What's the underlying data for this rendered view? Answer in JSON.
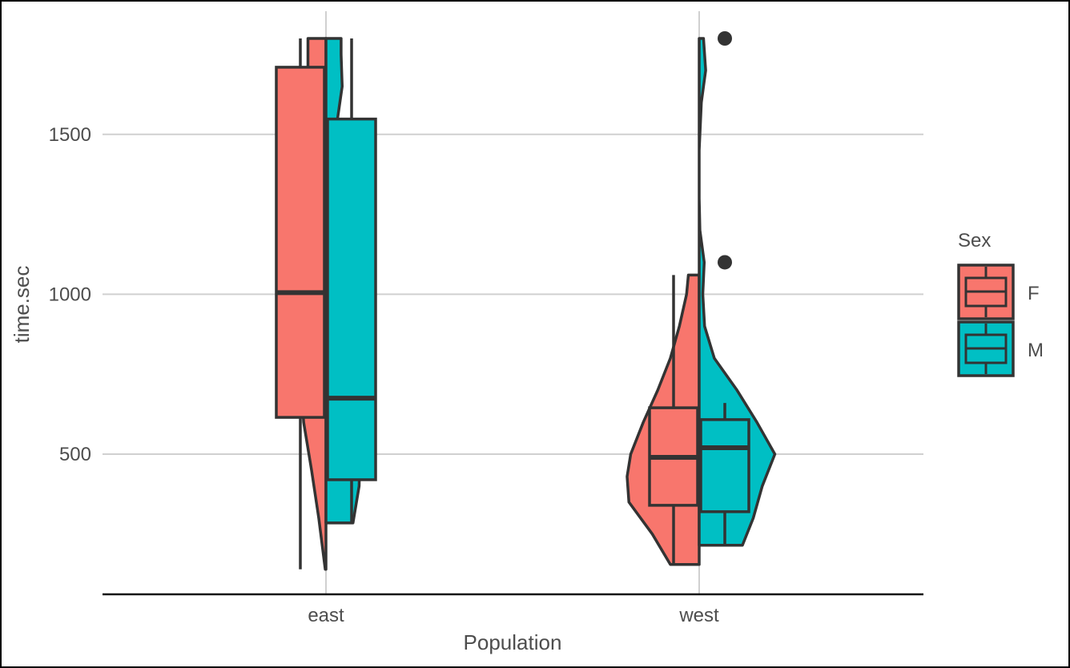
{
  "chart_data": {
    "type": "violin",
    "title": "",
    "xlabel": "Population",
    "ylabel": "time.sec",
    "ylim": [
      80,
      1840
    ],
    "yticks": [
      500,
      1000,
      1500
    ],
    "categories": [
      "east",
      "west"
    ],
    "grid": true,
    "legend": {
      "title": "Sex",
      "position": "right",
      "entries": [
        {
          "label": "F",
          "color": "#F8766D"
        },
        {
          "label": "M",
          "color": "#00BFC4"
        }
      ]
    },
    "series": [
      {
        "name": "F",
        "color": "#F8766D",
        "groups": [
          {
            "category": "east",
            "min": 140,
            "q1": 615,
            "median": 1005,
            "q3": 1710,
            "max": 1800,
            "outliers": [],
            "density": [
              [
                140,
                0.02
              ],
              [
                300,
                0.2
              ],
              [
                450,
                0.4
              ],
              [
                600,
                0.62
              ],
              [
                800,
                0.72
              ],
              [
                1000,
                0.6
              ],
              [
                1200,
                0.5
              ],
              [
                1500,
                0.45
              ],
              [
                1700,
                0.5
              ],
              [
                1800,
                0.5
              ]
            ]
          },
          {
            "category": "west",
            "min": 155,
            "q1": 340,
            "median": 490,
            "q3": 645,
            "max": 1060,
            "outliers": [],
            "density": [
              [
                155,
                0.8
              ],
              [
                250,
                1.3
              ],
              [
                350,
                1.95
              ],
              [
                430,
                2.0
              ],
              [
                500,
                1.9
              ],
              [
                600,
                1.55
              ],
              [
                700,
                1.15
              ],
              [
                800,
                0.8
              ],
              [
                900,
                0.55
              ],
              [
                1000,
                0.35
              ],
              [
                1060,
                0.3
              ]
            ]
          }
        ]
      },
      {
        "name": "M",
        "color": "#00BFC4",
        "groups": [
          {
            "category": "east",
            "min": 285,
            "q1": 420,
            "median": 675,
            "q3": 1548,
            "max": 1800,
            "outliers": [],
            "density": [
              [
                285,
                0.75
              ],
              [
                400,
                0.92
              ],
              [
                530,
                0.95
              ],
              [
                680,
                0.78
              ],
              [
                850,
                0.65
              ],
              [
                1000,
                0.4
              ],
              [
                1300,
                0.32
              ],
              [
                1548,
                0.32
              ],
              [
                1650,
                0.45
              ],
              [
                1750,
                0.42
              ],
              [
                1800,
                0.42
              ]
            ]
          },
          {
            "category": "west",
            "min": 215,
            "q1": 320,
            "median": 520,
            "q3": 608,
            "max": 660,
            "outliers": [
              1100,
              1800
            ],
            "density": [
              [
                215,
                1.2
              ],
              [
                300,
                1.5
              ],
              [
                400,
                1.75
              ],
              [
                500,
                2.1
              ],
              [
                600,
                1.6
              ],
              [
                700,
                1.05
              ],
              [
                800,
                0.42
              ],
              [
                900,
                0.15
              ],
              [
                1000,
                0.1
              ],
              [
                1100,
                0.14
              ],
              [
                1200,
                0.02
              ],
              [
                1300,
                0.0
              ],
              [
                1450,
                0.0
              ],
              [
                1600,
                0.06
              ],
              [
                1700,
                0.18
              ],
              [
                1800,
                0.12
              ]
            ]
          }
        ]
      }
    ]
  }
}
